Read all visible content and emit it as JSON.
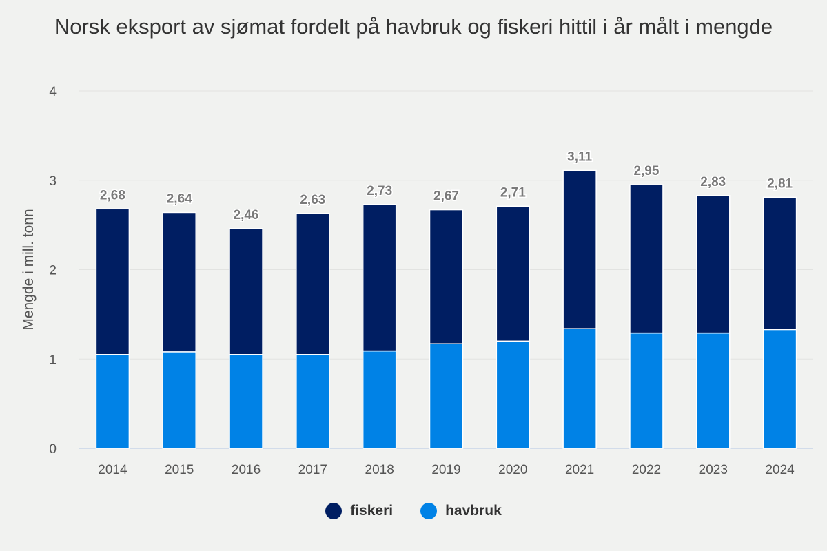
{
  "chart_data": {
    "type": "bar",
    "stacked": true,
    "title": "Norsk eksport av sjømat fordelt på havbruk og fiskeri hittil i år målt i mengde",
    "xlabel": "",
    "ylabel": "Mengde i mill. tonn",
    "ylim": [
      0,
      4
    ],
    "yticks": [
      "0",
      "1",
      "2",
      "3",
      "4"
    ],
    "grid": true,
    "legend_position": "bottom",
    "categories": [
      "2014",
      "2015",
      "2016",
      "2017",
      "2018",
      "2019",
      "2020",
      "2021",
      "2022",
      "2023",
      "2024"
    ],
    "series": [
      {
        "name": "havbruk",
        "color": "#0082e6",
        "values": [
          1.05,
          1.08,
          1.05,
          1.05,
          1.09,
          1.17,
          1.2,
          1.34,
          1.29,
          1.29,
          1.33
        ]
      },
      {
        "name": "fiskeri",
        "color": "#001e62",
        "values": [
          1.63,
          1.56,
          1.41,
          1.58,
          1.64,
          1.5,
          1.51,
          1.77,
          1.66,
          1.54,
          1.48
        ]
      }
    ],
    "totals": [
      "2,68",
      "2,64",
      "2,46",
      "2,63",
      "2,73",
      "2,67",
      "2,71",
      "3,11",
      "2,95",
      "2,83",
      "2,81"
    ],
    "total_values": [
      2.68,
      2.64,
      2.46,
      2.63,
      2.73,
      2.67,
      2.71,
      3.11,
      2.95,
      2.83,
      2.81
    ]
  }
}
